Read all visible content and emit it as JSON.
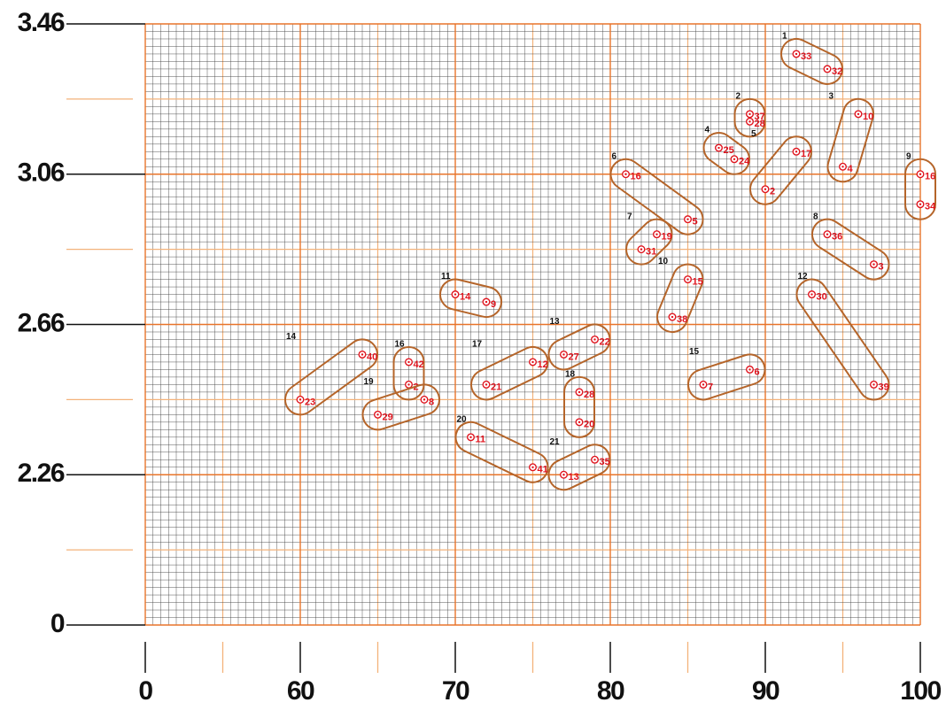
{
  "chart_data": {
    "type": "scatter",
    "xlim": [
      0,
      100
    ],
    "xticks": [
      0,
      60,
      70,
      80,
      90,
      100
    ],
    "ylim": [
      0,
      3.46
    ],
    "yticks": [
      0,
      2.26,
      2.66,
      3.06,
      3.46
    ],
    "grid": true,
    "point_color": "#e0141e",
    "loop_color": "#b5652a",
    "clusters": [
      {
        "label": "1",
        "points": [
          {
            "label": "33",
            "x": 92,
            "y": 3.38
          },
          {
            "label": "32",
            "x": 94,
            "y": 3.34
          }
        ]
      },
      {
        "label": "2",
        "points": [
          {
            "label": "37",
            "x": 89,
            "y": 3.22
          },
          {
            "label": "28",
            "x": 89,
            "y": 3.2
          }
        ]
      },
      {
        "label": "3",
        "points": [
          {
            "label": "10",
            "x": 96,
            "y": 3.22
          },
          {
            "label": "4",
            "x": 95,
            "y": 3.08
          }
        ]
      },
      {
        "label": "4",
        "points": [
          {
            "label": "25",
            "x": 87,
            "y": 3.13
          },
          {
            "label": "24",
            "x": 88,
            "y": 3.1
          }
        ]
      },
      {
        "label": "5",
        "points": [
          {
            "label": "17",
            "x": 92,
            "y": 3.12
          },
          {
            "label": "2",
            "x": 90,
            "y": 3.02
          }
        ]
      },
      {
        "label": "6",
        "points": [
          {
            "label": "16",
            "x": 81,
            "y": 3.06
          },
          {
            "label": "5",
            "x": 85,
            "y": 2.94
          }
        ]
      },
      {
        "label": "7",
        "points": [
          {
            "label": "19",
            "x": 83,
            "y": 2.9
          },
          {
            "label": "31",
            "x": 82,
            "y": 2.86
          }
        ]
      },
      {
        "label": "8",
        "points": [
          {
            "label": "36",
            "x": 94,
            "y": 2.9
          },
          {
            "label": "3",
            "x": 97,
            "y": 2.82
          }
        ]
      },
      {
        "label": "9",
        "points": [
          {
            "label": "16",
            "x": 100,
            "y": 3.06
          },
          {
            "label": "34",
            "x": 100,
            "y": 2.98
          }
        ]
      },
      {
        "label": "10",
        "points": [
          {
            "label": "15",
            "x": 85,
            "y": 2.78
          },
          {
            "label": "38",
            "x": 84,
            "y": 2.68
          }
        ]
      },
      {
        "label": "11",
        "points": [
          {
            "label": "14",
            "x": 70,
            "y": 2.74
          },
          {
            "label": "9",
            "x": 72,
            "y": 2.72
          }
        ]
      },
      {
        "label": "12",
        "points": [
          {
            "label": "30",
            "x": 93,
            "y": 2.74
          },
          {
            "label": "39",
            "x": 97,
            "y": 2.5
          }
        ]
      },
      {
        "label": "13",
        "points": [
          {
            "label": "22",
            "x": 79,
            "y": 2.62
          },
          {
            "label": "27",
            "x": 77,
            "y": 2.58
          }
        ]
      },
      {
        "label": "14",
        "points": [
          {
            "label": "40",
            "x": 64,
            "y": 2.58
          },
          {
            "label": "23",
            "x": 60,
            "y": 2.46
          }
        ]
      },
      {
        "label": "15",
        "points": [
          {
            "label": "6",
            "x": 89,
            "y": 2.54
          },
          {
            "label": "7",
            "x": 86,
            "y": 2.5
          }
        ]
      },
      {
        "label": "16",
        "points": [
          {
            "label": "42",
            "x": 67,
            "y": 2.56
          },
          {
            "label": "2",
            "x": 67,
            "y": 2.5
          }
        ]
      },
      {
        "label": "17",
        "points": [
          {
            "label": "12",
            "x": 75,
            "y": 2.56
          },
          {
            "label": "21",
            "x": 72,
            "y": 2.5
          }
        ]
      },
      {
        "label": "18",
        "points": [
          {
            "label": "28",
            "x": 78,
            "y": 2.48
          },
          {
            "label": "20",
            "x": 78,
            "y": 2.4
          }
        ]
      },
      {
        "label": "19",
        "points": [
          {
            "label": "8",
            "x": 68,
            "y": 2.46
          },
          {
            "label": "29",
            "x": 65,
            "y": 2.42
          }
        ]
      },
      {
        "label": "20",
        "points": [
          {
            "label": "11",
            "x": 71,
            "y": 2.36
          },
          {
            "label": "41",
            "x": 75,
            "y": 2.28
          }
        ]
      },
      {
        "label": "21",
        "points": [
          {
            "label": "35",
            "x": 79,
            "y": 2.3
          },
          {
            "label": "13",
            "x": 77,
            "y": 2.26
          }
        ]
      }
    ]
  }
}
